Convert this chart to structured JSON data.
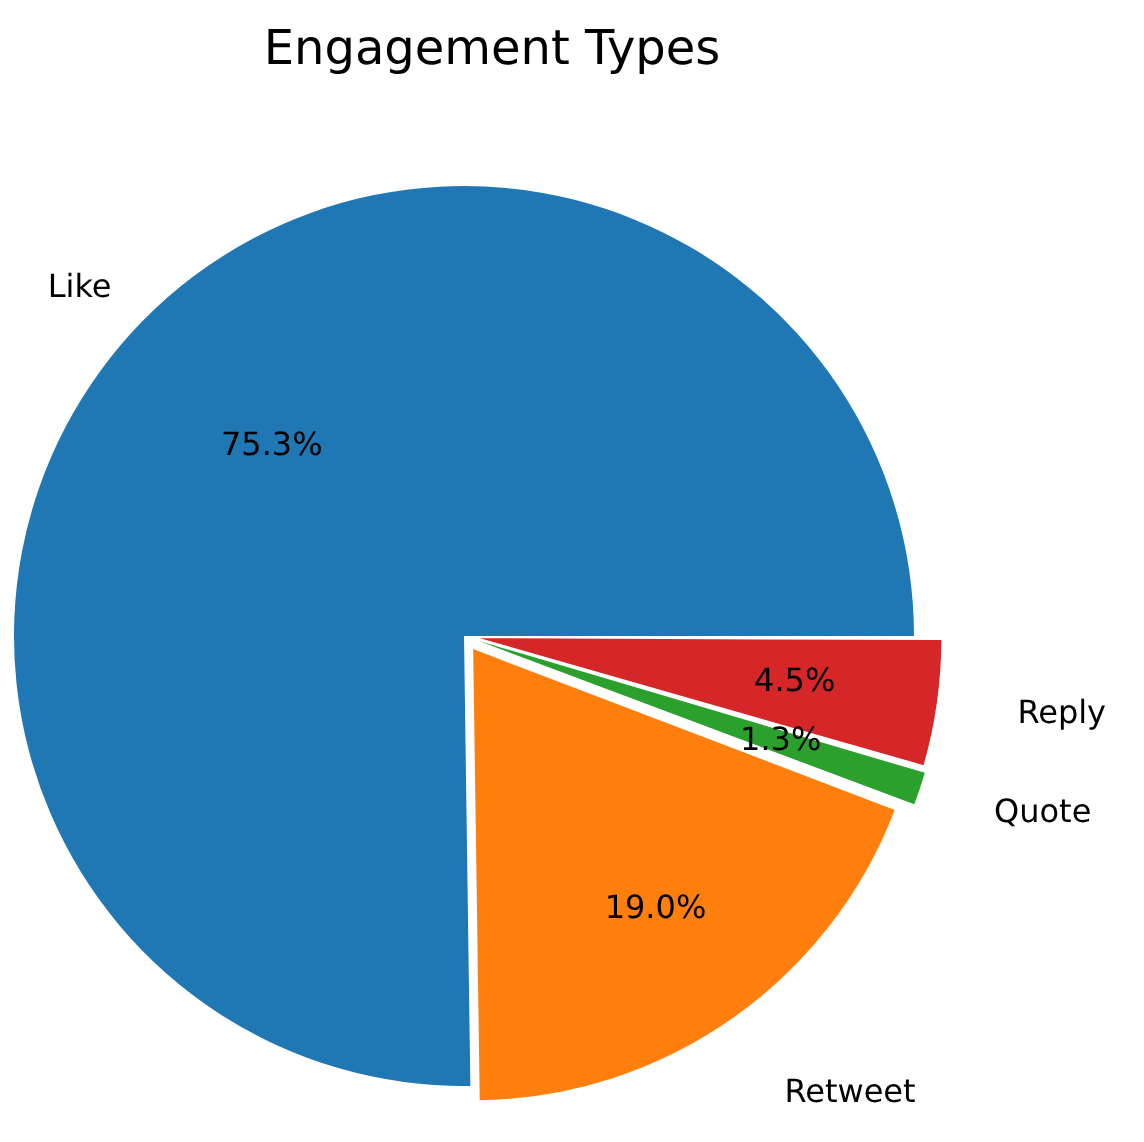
{
  "chart_data": {
    "type": "pie",
    "title": "Engagement Types",
    "categories": [
      "Like",
      "Retweet",
      "Quote",
      "Reply"
    ],
    "values": [
      75.3,
      19.0,
      1.3,
      4.5
    ],
    "colors": [
      "#1f77b4",
      "#ff7f0e",
      "#2ca02c",
      "#d62728"
    ],
    "value_labels": [
      "75.3%",
      "19.0%",
      "1.3%",
      "4.5%"
    ],
    "legend": false
  }
}
